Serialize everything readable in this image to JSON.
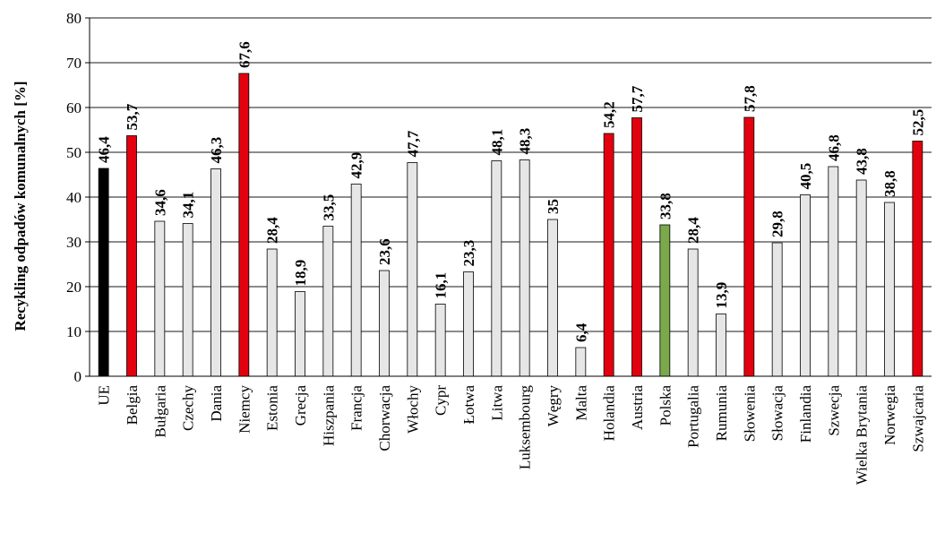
{
  "chart_data": {
    "type": "bar",
    "title": "",
    "xlabel": "",
    "ylabel": "Recykling odpadów komunalnych [%]",
    "ylim": [
      0,
      80
    ],
    "yticks": [
      0,
      10,
      20,
      30,
      40,
      50,
      60,
      70,
      80
    ],
    "grid": true,
    "categories": [
      "UE",
      "Belgia",
      "Bułgaria",
      "Czechy",
      "Dania",
      "Niemcy",
      "Estonia",
      "Grecja",
      "Hiszpania",
      "Francja",
      "Chorwacja",
      "Włochy",
      "Cypr",
      "Łotwa",
      "Litwa",
      "Luksembourg",
      "Węgry",
      "Malta",
      "Holandia",
      "Austria",
      "Polska",
      "Portugalia",
      "Rumunia",
      "Słowenia",
      "Słowacja",
      "Finlandia",
      "Szwecja",
      "Wielka Brytania",
      "Norwegia",
      "Szwajcaria"
    ],
    "values": [
      46.4,
      53.7,
      34.6,
      34.1,
      46.3,
      67.6,
      28.4,
      18.9,
      33.5,
      42.9,
      23.6,
      47.7,
      16.1,
      23.3,
      48.1,
      48.3,
      35,
      6.4,
      54.2,
      57.7,
      33.8,
      28.4,
      13.9,
      57.8,
      29.8,
      40.5,
      46.8,
      43.8,
      38.8,
      52.5
    ],
    "value_labels": [
      "46,4",
      "53,7",
      "34,6",
      "34,1",
      "46,3",
      "67,6",
      "28,4",
      "18,9",
      "33,5",
      "42,9",
      "23,6",
      "47,7",
      "16,1",
      "23,3",
      "48,1",
      "48,3",
      "35",
      "6,4",
      "54,2",
      "57,7",
      "33,8",
      "28,4",
      "13,9",
      "57,8",
      "29,8",
      "40,5",
      "46,8",
      "43,8",
      "38,8",
      "52,5"
    ],
    "bar_colors": [
      "#000000",
      "#e3000f",
      "#e6e6e6",
      "#e6e6e6",
      "#e6e6e6",
      "#e3000f",
      "#e6e6e6",
      "#e6e6e6",
      "#e6e6e6",
      "#e6e6e6",
      "#e6e6e6",
      "#e6e6e6",
      "#e6e6e6",
      "#e6e6e6",
      "#e6e6e6",
      "#e6e6e6",
      "#e6e6e6",
      "#e6e6e6",
      "#e3000f",
      "#e3000f",
      "#7aa84a",
      "#e6e6e6",
      "#e6e6e6",
      "#e3000f",
      "#e6e6e6",
      "#e6e6e6",
      "#e6e6e6",
      "#e6e6e6",
      "#e6e6e6",
      "#e3000f"
    ],
    "gridline_color": "#8c8c8c"
  }
}
